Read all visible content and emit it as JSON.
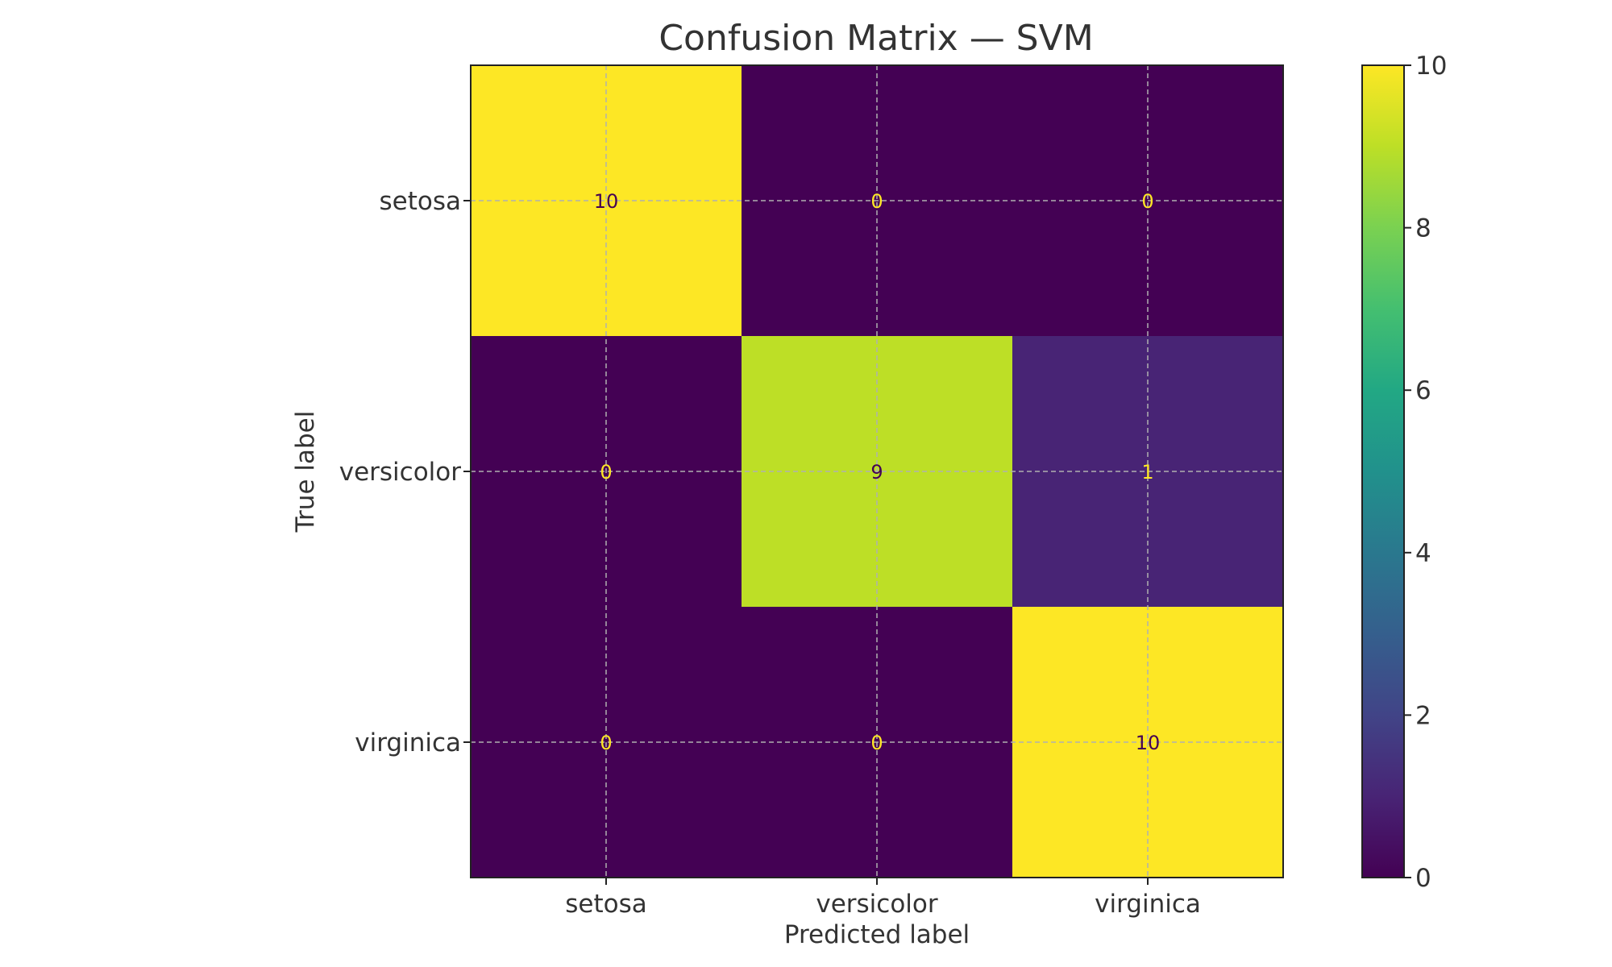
{
  "chart_data": {
    "type": "heatmap",
    "title": "Confusion Matrix — SVM",
    "xlabel": "Predicted label",
    "ylabel": "True label",
    "x_categories": [
      "setosa",
      "versicolor",
      "virginica"
    ],
    "y_categories": [
      "setosa",
      "versicolor",
      "virginica"
    ],
    "matrix": [
      [
        10,
        0,
        0
      ],
      [
        0,
        9,
        1
      ],
      [
        0,
        0,
        10
      ]
    ],
    "colormap": "viridis",
    "color_range": [
      0,
      10
    ],
    "colorbar_ticks": [
      0,
      2,
      4,
      6,
      8,
      10
    ],
    "grid": true,
    "cell_text_colors": {
      "dark": "#fde725",
      "light": "#440154"
    }
  }
}
